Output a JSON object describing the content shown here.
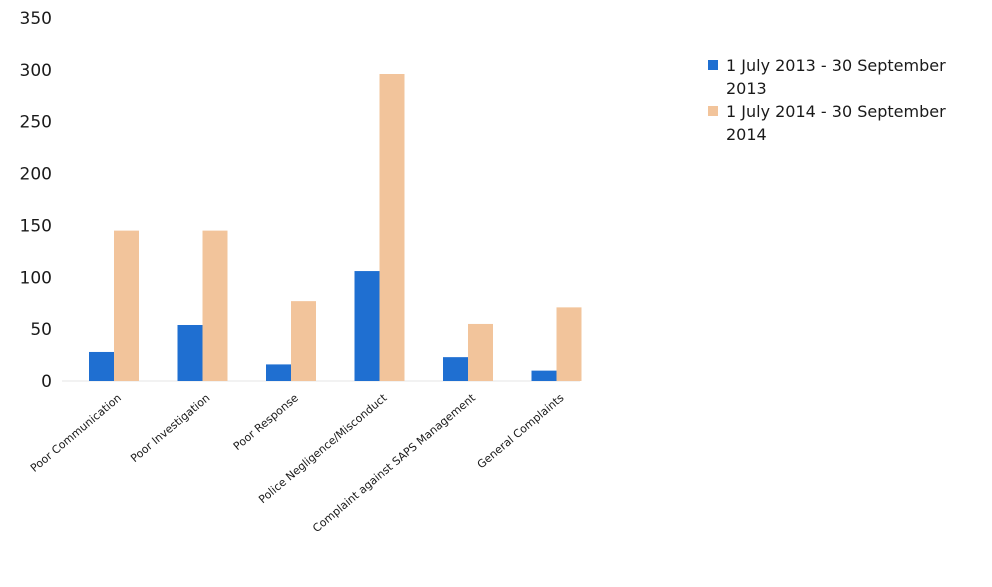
{
  "chart_data": {
    "type": "bar",
    "categories": [
      "Poor Communication",
      "Poor Investigation",
      "Poor Response",
      "Police Negligence/Misconduct",
      "Complaint against SAPS Management",
      "General Complaints"
    ],
    "series": [
      {
        "name": "1 July 2013 - 30 September 2013",
        "values": [
          28,
          54,
          16,
          106,
          23,
          10
        ],
        "color": "#1f6fd1"
      },
      {
        "name": "1 July 2014 - 30 September 2014",
        "values": [
          145,
          145,
          77,
          296,
          55,
          71
        ],
        "color": "#f2c49b"
      }
    ],
    "title": "",
    "xlabel": "",
    "ylabel": "",
    "ylim": [
      0,
      350
    ],
    "yticks": [
      0,
      50,
      100,
      150,
      200,
      250,
      300,
      350
    ],
    "grid": false,
    "legend_position": "right"
  }
}
